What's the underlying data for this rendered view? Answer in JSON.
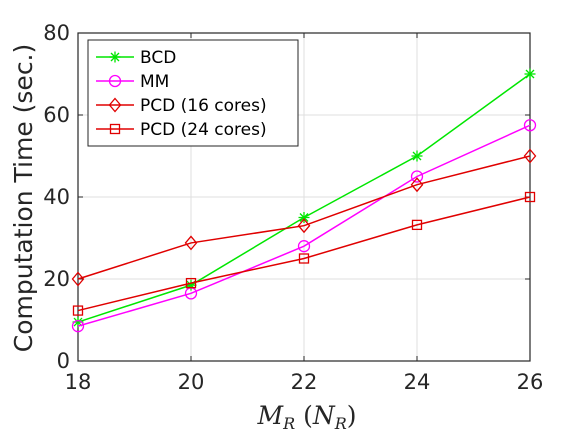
{
  "chart_data": {
    "type": "line",
    "x": [
      18,
      20,
      22,
      24,
      26
    ],
    "xlabel_base": "M",
    "xlabel_sub": "R",
    "xlabel_paren_base": "N",
    "xlabel_paren_sub": "R",
    "ylabel": "Computation Time (sec.)",
    "xlim": [
      18,
      26
    ],
    "ylim": [
      0,
      80
    ],
    "xticks": [
      18,
      20,
      22,
      24,
      26
    ],
    "yticks": [
      0,
      20,
      40,
      60,
      80
    ],
    "grid": true,
    "legend_position": "top-left",
    "series": [
      {
        "name": "BCD",
        "values": [
          9.5,
          18.5,
          35,
          50,
          70
        ],
        "color": "#00e600",
        "marker": "asterisk"
      },
      {
        "name": "MM",
        "values": [
          8.5,
          16.5,
          28,
          45,
          57.5
        ],
        "color": "#ff00ff",
        "marker": "circle"
      },
      {
        "name": "PCD (16 cores)",
        "values": [
          20,
          28.8,
          33,
          43,
          50
        ],
        "color": "#e00000",
        "marker": "diamond"
      },
      {
        "name": "PCD (24 cores)",
        "values": [
          12.3,
          19,
          25,
          33.2,
          40
        ],
        "color": "#e00000",
        "marker": "square"
      }
    ]
  }
}
